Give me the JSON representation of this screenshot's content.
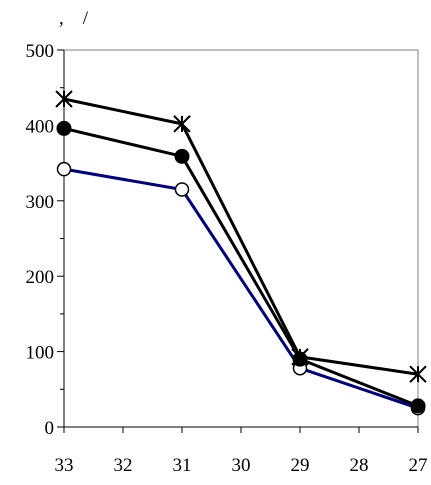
{
  "chart_data": {
    "type": "line",
    "title": ",    /",
    "xlabel": "",
    "ylabel": "",
    "x_reversed": true,
    "xlim": [
      33,
      27
    ],
    "ylim": [
      0,
      500
    ],
    "x_ticks": [
      33,
      32,
      31,
      30,
      29,
      28,
      27
    ],
    "x_tick_labels": [
      "33",
      "32",
      "31",
      "30",
      "29",
      "28",
      "27"
    ],
    "y_ticks": [
      0,
      100,
      200,
      300,
      400,
      500
    ],
    "y_tick_labels": [
      "0",
      "100",
      "200",
      "300",
      "400",
      "500"
    ],
    "grid": false,
    "series": [
      {
        "marker": "cross",
        "color": "#000000",
        "points": [
          [
            33,
            435
          ],
          [
            31,
            402
          ],
          [
            29,
            93
          ],
          [
            27,
            70
          ]
        ]
      },
      {
        "marker": "filled-circle",
        "color": "#000000",
        "points": [
          [
            33,
            396
          ],
          [
            31,
            359
          ],
          [
            29,
            90
          ],
          [
            27,
            28
          ]
        ]
      },
      {
        "marker": "open-circle",
        "color": "#000080",
        "points": [
          [
            33,
            342
          ],
          [
            31,
            315
          ],
          [
            29,
            78
          ],
          [
            27,
            25
          ]
        ]
      }
    ]
  }
}
